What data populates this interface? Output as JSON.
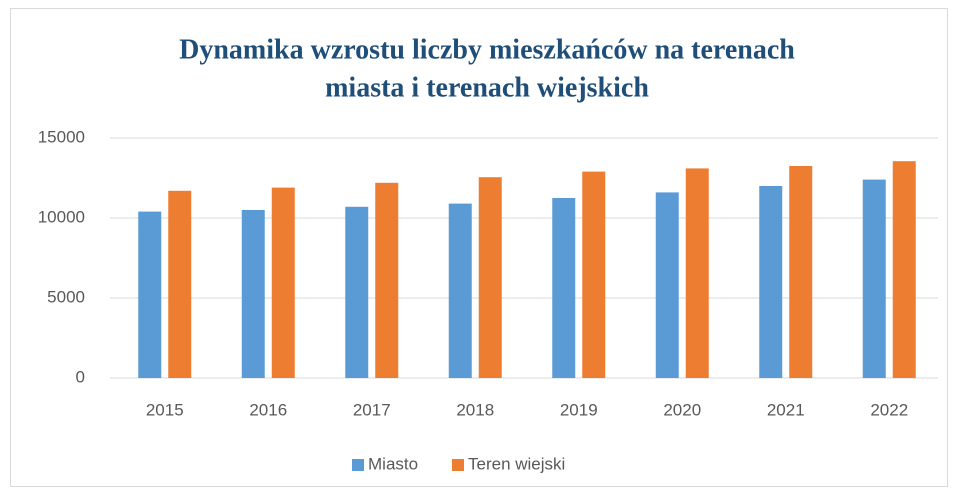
{
  "chart_data": {
    "type": "bar",
    "title": [
      "Dynamika wzrostu liczby mieszkańców na terenach",
      "miasta i terenach wiejskich"
    ],
    "categories": [
      "2015",
      "2016",
      "2017",
      "2018",
      "2019",
      "2020",
      "2021",
      "2022"
    ],
    "series": [
      {
        "name": "Miasto",
        "color": "#5b9bd5",
        "values": [
          10400,
          10500,
          10700,
          10900,
          11250,
          11600,
          12000,
          12400
        ]
      },
      {
        "name": "Teren wiejski",
        "color": "#ed7d31",
        "values": [
          11700,
          11900,
          12200,
          12550,
          12900,
          13100,
          13250,
          13550
        ]
      }
    ],
    "ylim": [
      0,
      15000
    ],
    "yticks": [
      0,
      5000,
      10000,
      15000
    ],
    "grid": true,
    "legend": "bottom"
  }
}
